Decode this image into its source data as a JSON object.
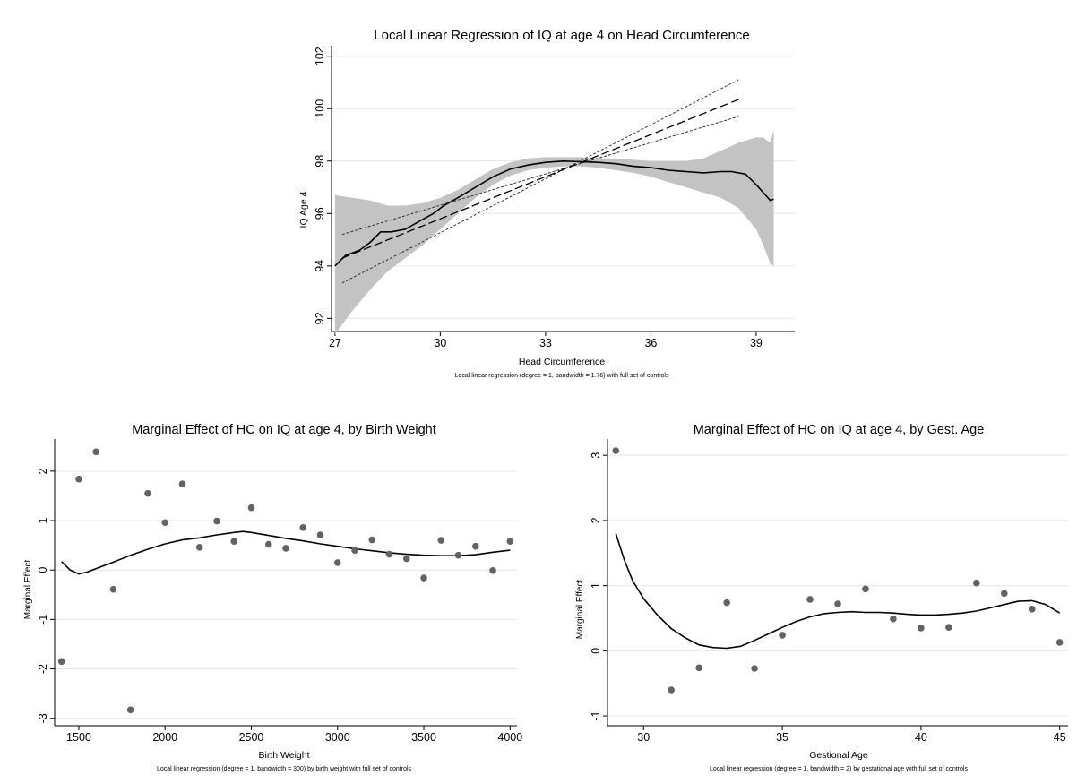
{
  "chart_data": [
    {
      "type": "line",
      "title": "Local Linear Regression of IQ at age 4 on Head Circumference",
      "xlabel": "Head Circumference",
      "ylabel": "IQ Age 4",
      "note": "Local linear regression (degree = 1, bandwidth = 1.76) with full set of controls",
      "xlim": [
        26.9,
        40.1
      ],
      "ylim": [
        91.5,
        102.4
      ],
      "xticks": [
        27,
        30,
        33,
        36,
        39
      ],
      "yticks": [
        92,
        94,
        96,
        98,
        100,
        102
      ],
      "grid": true,
      "series": [
        {
          "style": "solid",
          "x": [
            27.0,
            27.3,
            27.7,
            28.0,
            28.3,
            28.6,
            29.0,
            29.4,
            29.8,
            30.1,
            30.5,
            31.0,
            31.5,
            32.0,
            32.5,
            33.0,
            33.5,
            34.0,
            34.5,
            35.0,
            35.5,
            36.0,
            36.5,
            37.0,
            37.5,
            38.0,
            38.3,
            38.7,
            39.0,
            39.2,
            39.4,
            39.5
          ],
          "values": [
            94.0,
            94.4,
            94.6,
            94.9,
            95.3,
            95.3,
            95.4,
            95.7,
            96.0,
            96.3,
            96.6,
            97.0,
            97.4,
            97.7,
            97.85,
            97.95,
            98.0,
            97.98,
            97.95,
            97.9,
            97.8,
            97.75,
            97.65,
            97.6,
            97.55,
            97.6,
            97.6,
            97.5,
            97.1,
            96.8,
            96.5,
            96.55
          ]
        },
        {
          "style": "confidence band (upper)",
          "x": [
            27.0,
            27.5,
            28.0,
            28.5,
            29.0,
            29.5,
            30.0,
            30.5,
            31.0,
            31.5,
            32.0,
            32.5,
            33.0,
            33.5,
            34.0,
            34.5,
            35.0,
            35.5,
            36.0,
            36.5,
            37.0,
            37.5,
            38.0,
            38.5,
            39.0,
            39.2,
            39.4,
            39.5
          ],
          "values": [
            96.7,
            96.6,
            96.5,
            96.3,
            96.3,
            96.4,
            96.6,
            96.9,
            97.3,
            97.7,
            97.95,
            98.1,
            98.15,
            98.15,
            98.15,
            98.1,
            98.1,
            98.05,
            98.0,
            98.0,
            98.0,
            98.1,
            98.4,
            98.7,
            98.9,
            98.9,
            98.7,
            99.2
          ]
        },
        {
          "style": "confidence band (lower)",
          "x": [
            27.0,
            27.5,
            28.0,
            28.5,
            29.0,
            29.5,
            30.0,
            30.5,
            31.0,
            31.5,
            32.0,
            32.5,
            33.0,
            33.5,
            34.0,
            34.5,
            35.0,
            35.5,
            36.0,
            36.5,
            37.0,
            37.5,
            38.0,
            38.5,
            39.0,
            39.2,
            39.4,
            39.5
          ],
          "values": [
            91.4,
            92.3,
            93.1,
            93.8,
            94.3,
            94.8,
            95.4,
            96.0,
            96.6,
            97.1,
            97.45,
            97.65,
            97.75,
            97.8,
            97.8,
            97.75,
            97.65,
            97.55,
            97.4,
            97.2,
            97.0,
            96.8,
            96.6,
            96.2,
            95.4,
            94.8,
            94.1,
            94.0
          ]
        },
        {
          "style": "long dash",
          "x": [
            27.2,
            38.5
          ],
          "values": [
            94.3,
            100.35
          ]
        },
        {
          "style": "short dash (upper)",
          "x": [
            27.2,
            38.5
          ],
          "values": [
            95.2,
            99.7
          ]
        },
        {
          "style": "short dash (lower)",
          "x": [
            27.2,
            38.5
          ],
          "values": [
            93.35,
            101.1
          ]
        }
      ]
    },
    {
      "type": "scatter",
      "title": "Marginal Effect of HC on IQ at age 4, by Birth Weight",
      "xlabel": "Birth Weight",
      "ylabel": "Marginal Effect",
      "note": "Local linear regression (degree = 1, bandwidth = 300) by birth weight with full set of controls",
      "xlim": [
        1360,
        4040
      ],
      "ylim": [
        -3.15,
        2.65
      ],
      "xticks": [
        1500,
        2000,
        2500,
        3000,
        3500,
        4000
      ],
      "yticks": [
        -3,
        -2,
        -1,
        0,
        1,
        2
      ],
      "grid": true,
      "points": {
        "x": [
          1400,
          1500,
          1600,
          1700,
          1800,
          1900,
          2000,
          2100,
          2200,
          2300,
          2400,
          2500,
          2600,
          2700,
          2800,
          2900,
          3000,
          3100,
          3200,
          3300,
          3400,
          3500,
          3600,
          3700,
          3800,
          3900,
          4000
        ],
        "values": [
          -1.85,
          1.84,
          2.39,
          -0.39,
          -2.83,
          1.55,
          0.96,
          1.74,
          0.46,
          0.99,
          0.58,
          1.26,
          0.52,
          0.44,
          0.86,
          0.71,
          0.15,
          0.4,
          0.61,
          0.32,
          0.23,
          -0.16,
          0.6,
          0.3,
          0.48,
          -0.01,
          0.58
        ]
      },
      "line": {
        "x": [
          1400,
          1450,
          1500,
          1550,
          1600,
          1700,
          1800,
          1900,
          2000,
          2100,
          2200,
          2300,
          2400,
          2450,
          2500,
          2600,
          2700,
          2800,
          2900,
          3000,
          3100,
          3200,
          3300,
          3400,
          3500,
          3600,
          3700,
          3800,
          3900,
          4000
        ],
        "values": [
          0.17,
          0.0,
          -0.08,
          -0.04,
          0.03,
          0.16,
          0.3,
          0.42,
          0.53,
          0.61,
          0.65,
          0.71,
          0.76,
          0.78,
          0.76,
          0.7,
          0.64,
          0.59,
          0.53,
          0.48,
          0.43,
          0.39,
          0.35,
          0.32,
          0.3,
          0.29,
          0.29,
          0.31,
          0.36,
          0.4
        ]
      }
    },
    {
      "type": "scatter",
      "title": "Marginal Effect of HC on IQ at age 4, by Gest. Age",
      "xlabel": "Gestional Age",
      "ylabel": "Marginal Effect",
      "note": "Local linear regression (degree = 1, bandwidth = 2) by gestational age with full set of controls",
      "xlim": [
        28.7,
        45.3
      ],
      "ylim": [
        -1.15,
        3.25
      ],
      "xticks": [
        30,
        35,
        40,
        45
      ],
      "yticks": [
        -1,
        0,
        1,
        2,
        3
      ],
      "grid": true,
      "points": {
        "x": [
          29,
          31,
          32,
          33,
          34,
          35,
          36,
          37,
          38,
          39,
          40,
          41,
          42,
          43,
          44,
          45
        ],
        "values": [
          3.07,
          -0.6,
          -0.26,
          0.74,
          -0.27,
          0.24,
          0.79,
          0.72,
          0.95,
          0.49,
          0.35,
          0.36,
          1.04,
          0.88,
          0.64,
          0.13
        ]
      },
      "line": {
        "x": [
          29,
          29.3,
          29.6,
          30,
          30.5,
          31,
          31.5,
          32,
          32.5,
          33,
          33.5,
          34,
          34.5,
          35,
          35.5,
          36,
          36.5,
          37,
          37.5,
          38,
          38.5,
          39,
          39.5,
          40,
          40.5,
          41,
          41.5,
          42,
          42.5,
          43,
          43.5,
          44,
          44.5,
          45
        ],
        "values": [
          1.8,
          1.4,
          1.08,
          0.8,
          0.55,
          0.34,
          0.2,
          0.09,
          0.05,
          0.04,
          0.07,
          0.16,
          0.26,
          0.36,
          0.45,
          0.52,
          0.57,
          0.59,
          0.6,
          0.59,
          0.59,
          0.58,
          0.56,
          0.55,
          0.55,
          0.56,
          0.58,
          0.61,
          0.66,
          0.71,
          0.76,
          0.77,
          0.71,
          0.58
        ]
      }
    }
  ]
}
